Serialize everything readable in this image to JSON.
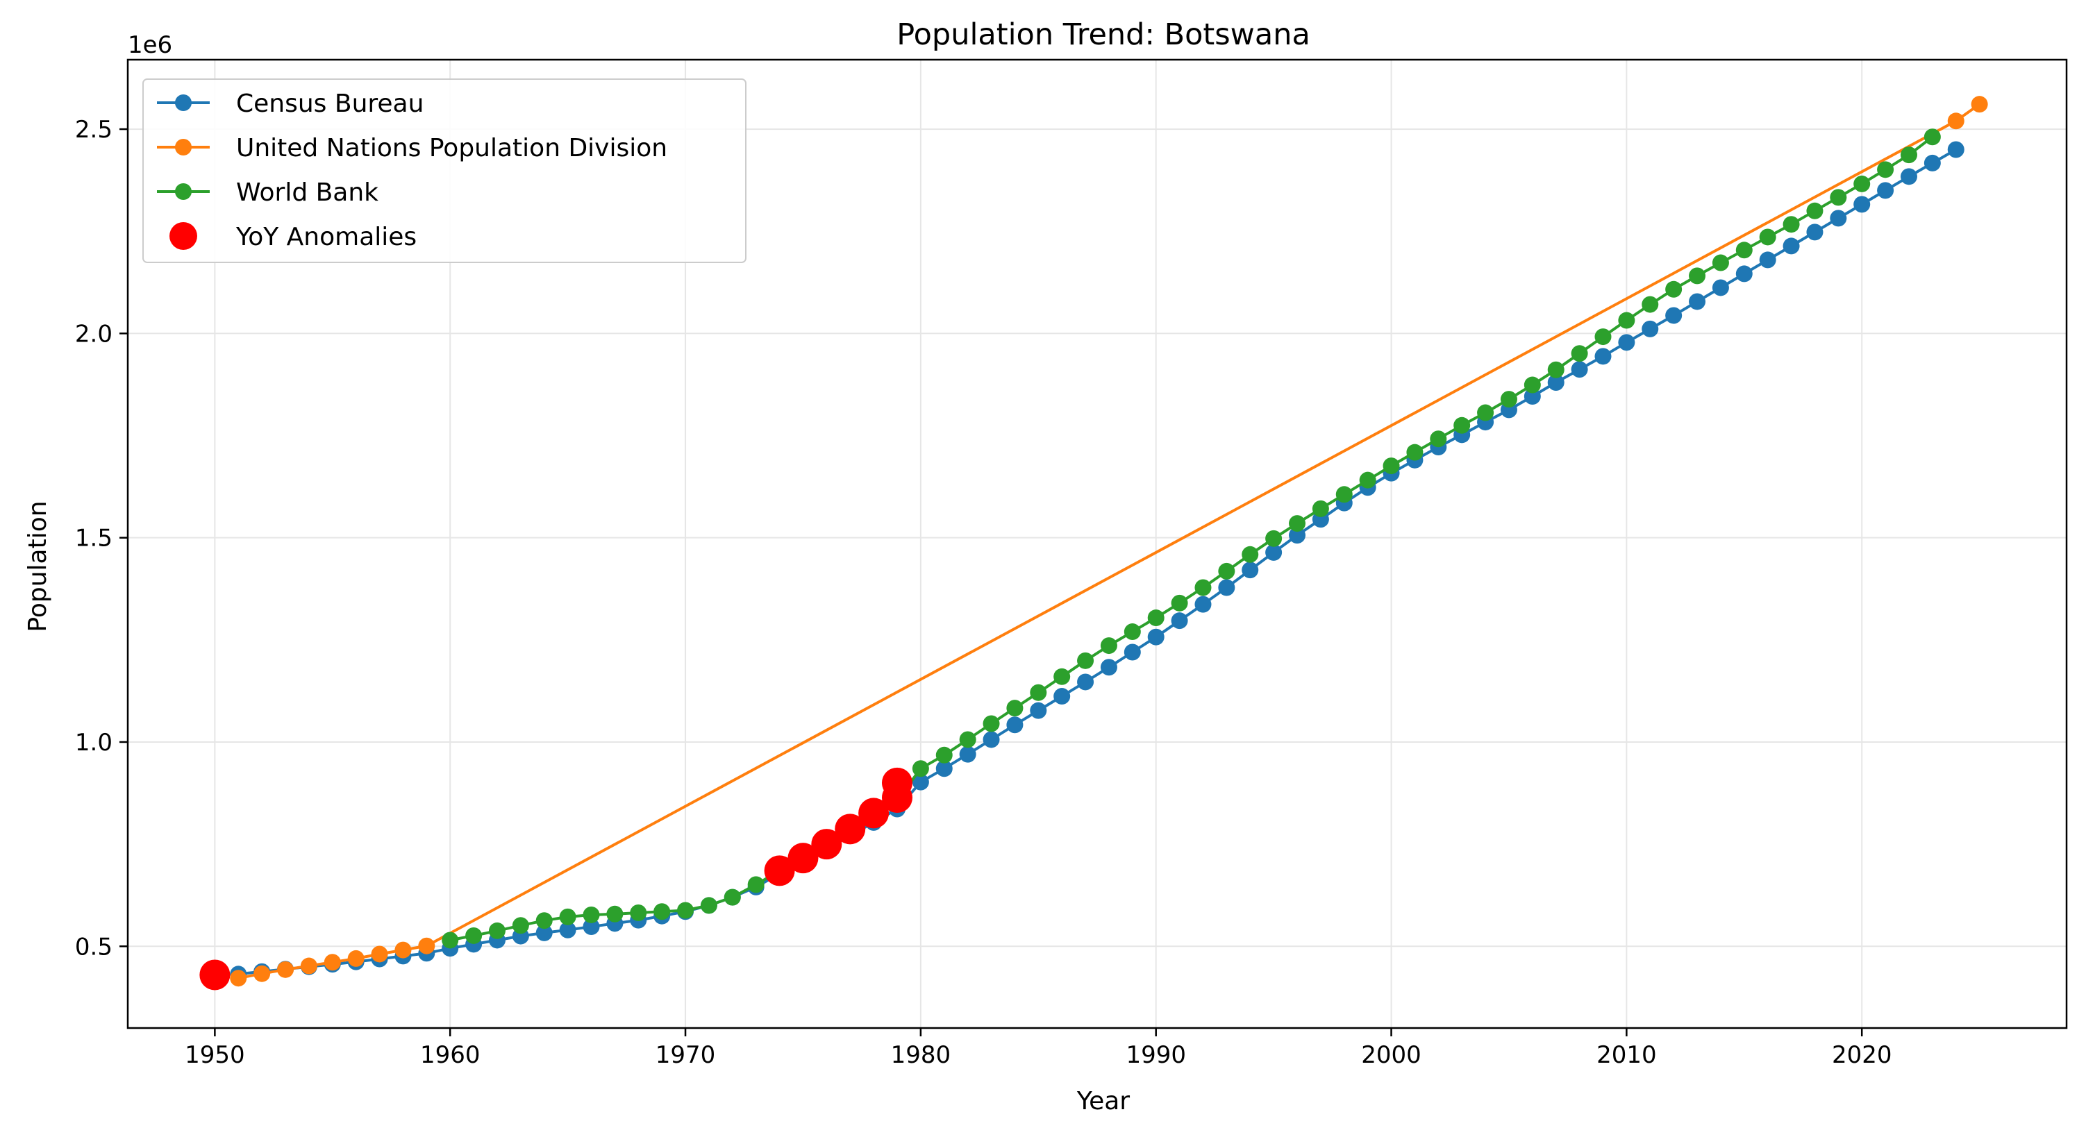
{
  "chart_data": {
    "type": "line",
    "title": "Population Trend: Botswana",
    "xlabel": "Year",
    "ylabel": "Population",
    "y_offset_label": "1e6",
    "xlim": [
      1946.3,
      2028.7
    ],
    "ylim": [
      0.3,
      2.67
    ],
    "y_unit_multiplier": 1000000,
    "x_ticks": [
      1950,
      1960,
      1970,
      1980,
      1990,
      2000,
      2010,
      2020
    ],
    "x_tick_labels": [
      "1950",
      "1960",
      "1970",
      "1980",
      "1990",
      "2000",
      "2010",
      "2020"
    ],
    "y_ticks": [
      0.5,
      1.0,
      1.5,
      2.0,
      2.5
    ],
    "y_tick_labels": [
      "0.5",
      "1.0",
      "1.5",
      "2.0",
      "2.5"
    ],
    "grid": true,
    "legend_position": "top-left",
    "series": [
      {
        "name": "Census Bureau",
        "color": "#1f77b4",
        "x": [
          1951,
          1952,
          1953,
          1954,
          1955,
          1956,
          1957,
          1958,
          1959,
          1960,
          1961,
          1962,
          1963,
          1964,
          1965,
          1966,
          1967,
          1968,
          1969,
          1970,
          1971,
          1972,
          1973,
          1974,
          1975,
          1976,
          1977,
          1978,
          1979,
          1980,
          1981,
          1982,
          1983,
          1984,
          1985,
          1986,
          1987,
          1988,
          1989,
          1990,
          1991,
          1992,
          1993,
          1994,
          1995,
          1996,
          1997,
          1998,
          1999,
          2000,
          2001,
          2002,
          2003,
          2004,
          2005,
          2006,
          2007,
          2008,
          2009,
          2010,
          2011,
          2012,
          2013,
          2014,
          2015,
          2016,
          2017,
          2018,
          2019,
          2020,
          2021,
          2022,
          2023,
          2024
        ],
        "y": [
          0.432,
          0.438,
          0.444,
          0.45,
          0.456,
          0.462,
          0.469,
          0.476,
          0.483,
          0.495,
          0.505,
          0.515,
          0.525,
          0.533,
          0.54,
          0.548,
          0.556,
          0.564,
          0.574,
          0.585,
          0.6,
          0.62,
          0.645,
          0.678,
          0.708,
          0.739,
          0.771,
          0.803,
          0.836,
          0.902,
          0.935,
          0.97,
          1.006,
          1.042,
          1.077,
          1.112,
          1.147,
          1.183,
          1.22,
          1.257,
          1.297,
          1.337,
          1.378,
          1.421,
          1.464,
          1.506,
          1.545,
          1.585,
          1.623,
          1.658,
          1.69,
          1.722,
          1.752,
          1.783,
          1.813,
          1.846,
          1.88,
          1.912,
          1.944,
          1.978,
          2.011,
          2.044,
          2.078,
          2.112,
          2.146,
          2.18,
          2.214,
          2.248,
          2.282,
          2.316,
          2.35,
          2.384,
          2.417,
          2.45
        ]
      },
      {
        "name": "United Nations Population Division",
        "color": "#ff7f0e",
        "x": [
          1951,
          1952,
          1953,
          1954,
          1955,
          1956,
          1957,
          1958,
          1959,
          2024,
          2025
        ],
        "y": [
          0.422,
          0.433,
          0.443,
          0.452,
          0.461,
          0.47,
          0.481,
          0.491,
          0.501,
          2.52,
          2.561
        ]
      },
      {
        "name": "World Bank",
        "color": "#2ca02c",
        "x": [
          1960,
          1961,
          1962,
          1963,
          1964,
          1965,
          1966,
          1967,
          1968,
          1969,
          1970,
          1971,
          1972,
          1973,
          1974,
          1975,
          1976,
          1977,
          1978,
          1979,
          1980,
          1981,
          1982,
          1983,
          1984,
          1985,
          1986,
          1987,
          1988,
          1989,
          1990,
          1991,
          1992,
          1993,
          1994,
          1995,
          1996,
          1997,
          1998,
          1999,
          2000,
          2001,
          2002,
          2003,
          2004,
          2005,
          2006,
          2007,
          2008,
          2009,
          2010,
          2011,
          2012,
          2013,
          2014,
          2015,
          2016,
          2017,
          2018,
          2019,
          2020,
          2021,
          2022,
          2023
        ],
        "y": [
          0.515,
          0.526,
          0.538,
          0.551,
          0.563,
          0.572,
          0.577,
          0.579,
          0.582,
          0.585,
          0.588,
          0.6,
          0.62,
          0.651,
          0.685,
          0.718,
          0.752,
          0.787,
          0.822,
          0.857,
          0.935,
          0.968,
          1.006,
          1.045,
          1.083,
          1.121,
          1.16,
          1.199,
          1.236,
          1.27,
          1.304,
          1.34,
          1.378,
          1.418,
          1.459,
          1.498,
          1.535,
          1.571,
          1.606,
          1.641,
          1.676,
          1.709,
          1.742,
          1.775,
          1.806,
          1.839,
          1.874,
          1.911,
          1.951,
          1.992,
          2.032,
          2.071,
          2.108,
          2.141,
          2.173,
          2.204,
          2.236,
          2.267,
          2.3,
          2.333,
          2.366,
          2.401,
          2.437,
          2.481
        ]
      },
      {
        "name": "YoY Anomalies",
        "color": "#ff0000",
        "type": "scatter",
        "x": [
          1950,
          1974,
          1975,
          1976,
          1977,
          1978,
          1979,
          1979
        ],
        "y": [
          0.43,
          0.685,
          0.716,
          0.75,
          0.787,
          0.826,
          0.864,
          0.9
        ]
      }
    ]
  }
}
